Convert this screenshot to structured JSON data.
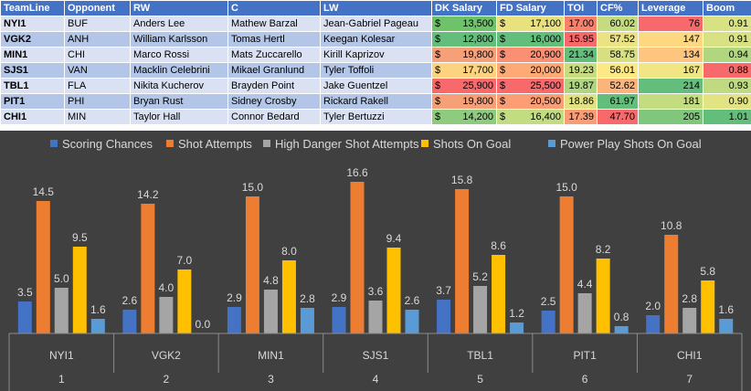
{
  "table": {
    "headers": [
      "TeamLine",
      "Opponent",
      "RW",
      "C",
      "LW",
      "DK Salary",
      "FD Salary",
      "TOI",
      "CF%",
      "Leverage",
      "Boom"
    ],
    "currency_symbol": "$",
    "rows": [
      {
        "team": "NYI1",
        "opp": "BUF",
        "rw": "Anders Lee",
        "c": "Mathew Barzal",
        "lw": "Jean-Gabriel Pageau",
        "dk": "13,500",
        "fd": "17,100",
        "toi": "17.00",
        "cf": "60.02",
        "lev": "76",
        "boom": "0.91",
        "colors": {
          "dk": "#6ec36a",
          "fd": "#e9e17d",
          "toi": "#f9816b",
          "cf": "#c4dc7f",
          "lev": "#f8696b",
          "boom": "#d8e283"
        }
      },
      {
        "team": "VGK2",
        "opp": "ANH",
        "rw": "William Karlsson",
        "c": "Tomas Hertl",
        "lw": "Keegan Kolesar",
        "dk": "12,800",
        "fd": "16,000",
        "toi": "15.95",
        "cf": "57.52",
        "lev": "147",
        "boom": "0.91",
        "colors": {
          "dk": "#63be7b",
          "fd": "#63be7b",
          "toi": "#f8696b",
          "cf": "#ebe383",
          "lev": "#fed880",
          "boom": "#d8e283"
        }
      },
      {
        "team": "MIN1",
        "opp": "CHI",
        "rw": "Marco Rossi",
        "c": "Mats Zuccarello",
        "lw": "Kirill Kaprizov",
        "dk": "19,800",
        "fd": "20,900",
        "toi": "21.34",
        "cf": "58.75",
        "lev": "134",
        "boom": "0.94",
        "colors": {
          "dk": "#f6a079",
          "fd": "#fa8f73",
          "toi": "#63be7b",
          "cf": "#d8df81",
          "lev": "#fdc57d",
          "boom": "#b0d680"
        }
      },
      {
        "team": "SJS1",
        "opp": "VAN",
        "rw": "Macklin Celebrini",
        "c": "Mikael Granlund",
        "lw": "Tyler Toffoli",
        "dk": "17,700",
        "fd": "20,000",
        "toi": "19.23",
        "cf": "56.01",
        "lev": "167",
        "boom": "0.88",
        "colors": {
          "dk": "#fed380",
          "fd": "#fdaa77",
          "toi": "#c8dc81",
          "cf": "#fde983",
          "lev": "#f0e784",
          "boom": "#f8696b"
        }
      },
      {
        "team": "TBL1",
        "opp": "FLA",
        "rw": "Nikita Kucherov",
        "c": "Brayden Point",
        "lw": "Jake Guentzel",
        "dk": "25,900",
        "fd": "25,500",
        "toi": "19.87",
        "cf": "52.62",
        "lev": "214",
        "boom": "0.93",
        "colors": {
          "dk": "#f8696b",
          "fd": "#f8696b",
          "toi": "#afd580",
          "cf": "#fbb47a",
          "lev": "#63be7b",
          "boom": "#c0da81"
        }
      },
      {
        "team": "PIT1",
        "opp": "PHI",
        "rw": "Bryan Rust",
        "c": "Sidney Crosby",
        "lw": "Rickard Rakell",
        "dk": "19,800",
        "fd": "20,500",
        "toi": "18.86",
        "cf": "61.97",
        "lev": "181",
        "boom": "0.90",
        "colors": {
          "dk": "#f6a079",
          "fd": "#fb9e76",
          "toi": "#e1e283",
          "cf": "#63be7b",
          "lev": "#c4dc80",
          "boom": "#e2e483"
        }
      },
      {
        "team": "CHI1",
        "opp": "MIN",
        "rw": "Taylor Hall",
        "c": "Connor Bedard",
        "lw": "Tyler Bertuzzi",
        "dk": "14,200",
        "fd": "16,400",
        "toi": "17.39",
        "cf": "47.70",
        "lev": "205",
        "boom": "1.01",
        "colors": {
          "dk": "#8fcb7e",
          "fd": "#c2dc82",
          "toi": "#fa9c74",
          "cf": "#f8696b",
          "lev": "#80c67c",
          "boom": "#63be7b"
        }
      }
    ]
  },
  "chart_data": {
    "type": "bar",
    "title": "",
    "xlabel": "",
    "ylabel": "",
    "ylim": [
      0,
      18
    ],
    "grid": false,
    "legend_position": "top",
    "categories": [
      "NYI1",
      "VGK2",
      "MIN1",
      "SJS1",
      "TBL1",
      "PIT1",
      "CHI1"
    ],
    "category_numbers": [
      "1",
      "2",
      "3",
      "4",
      "5",
      "6",
      "7"
    ],
    "series": [
      {
        "name": "Scoring Chances",
        "color": "#4472c4",
        "values": [
          3.5,
          2.6,
          2.9,
          2.9,
          3.7,
          2.5,
          2.0
        ]
      },
      {
        "name": "Shot Attempts",
        "color": "#ed7d31",
        "values": [
          14.5,
          14.2,
          15.0,
          16.6,
          15.8,
          15.0,
          10.8
        ]
      },
      {
        "name": "High Danger Shot Attempts",
        "color": "#a5a5a5",
        "values": [
          5.0,
          4.0,
          4.8,
          3.6,
          5.2,
          4.4,
          2.8
        ]
      },
      {
        "name": "Shots On Goal",
        "color": "#ffc000",
        "values": [
          9.5,
          7.0,
          8.0,
          9.4,
          8.6,
          8.2,
          5.8
        ]
      },
      {
        "name": "Power Play Shots On Goal",
        "color": "#5b9bd5",
        "values": [
          1.6,
          0.0,
          2.8,
          2.6,
          1.2,
          0.8,
          1.6
        ]
      }
    ]
  }
}
